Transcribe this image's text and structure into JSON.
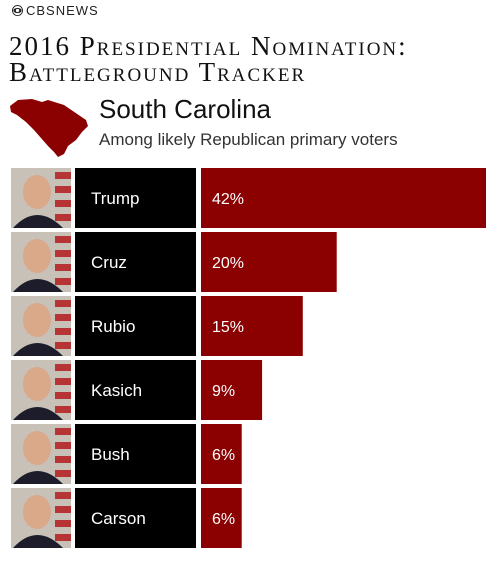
{
  "brand": {
    "name": "CBSNEWS"
  },
  "header": {
    "title_line1": "2016 Presidential Nomination:",
    "title_line2": "Battleground Tracker",
    "state": "South Carolina",
    "subtitle": "Among likely Republican primary voters"
  },
  "colors": {
    "bar": "#8b0000",
    "label_bg": "#000000",
    "label_text": "#ffffff"
  },
  "chart_data": {
    "type": "bar",
    "orientation": "horizontal",
    "categories": [
      "Trump",
      "Cruz",
      "Rubio",
      "Kasich",
      "Bush",
      "Carson"
    ],
    "values": [
      42,
      20,
      15,
      9,
      6,
      6
    ],
    "value_labels": [
      "42%",
      "20%",
      "15%",
      "9%",
      "6%",
      "6%"
    ],
    "title": "",
    "xlabel": "",
    "ylabel": "",
    "xlim": [
      0,
      42
    ]
  }
}
